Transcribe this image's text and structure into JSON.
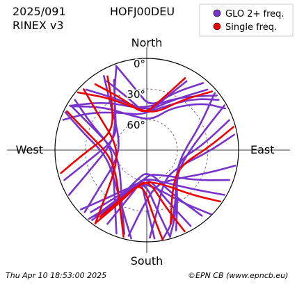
{
  "header": {
    "date_code": "2025/091",
    "rinex": "RINEX v3",
    "station": "HOFJ00DEU"
  },
  "footer": {
    "timestamp": "Thu Apr 10 18:53:00 2025",
    "credit": "©EPN CB (www.epncb.eu)"
  },
  "colors": {
    "glo": "#7733cc",
    "single": "#ee0000",
    "axis": "#000000",
    "grid": "#555555"
  },
  "chart_data": {
    "type": "scatter",
    "projection": "polar sky plot",
    "cardinals": {
      "north": "North",
      "south": "South",
      "east": "East",
      "west": "West"
    },
    "elevation_rings": [
      {
        "elevation": 0,
        "label": "0°"
      },
      {
        "elevation": 30,
        "label": "30°"
      },
      {
        "elevation": 60,
        "label": "60°"
      }
    ],
    "legend": {
      "position": "top-right",
      "entries": [
        "GLO 2+ freq.",
        "Single freq."
      ]
    },
    "series": [
      {
        "name": "GLO 2+ freq.",
        "color": "#7733cc",
        "tracks": [
          [
            [
              -30,
              12
            ],
            [
              -18,
              38
            ],
            [
              0,
              56
            ],
            [
              18,
              38
            ],
            [
              30,
              12
            ]
          ],
          [
            [
              -45,
              6
            ],
            [
              -28,
              34
            ],
            [
              0,
              52
            ],
            [
              28,
              34
            ],
            [
              45,
              6
            ]
          ],
          [
            [
              -60,
              3
            ],
            [
              -40,
              28
            ],
            [
              -5,
              50
            ],
            [
              30,
              30
            ],
            [
              52,
              3
            ]
          ],
          [
            [
              -20,
              2
            ],
            [
              -10,
              30
            ],
            [
              5,
              48
            ],
            [
              25,
              28
            ],
            [
              40,
              4
            ]
          ],
          [
            [
              300,
              4
            ],
            [
              315,
              30
            ],
            [
              340,
              55
            ],
            [
              10,
              60
            ],
            [
              30,
              42
            ],
            [
              50,
              18
            ],
            [
              62,
              3
            ]
          ],
          [
            [
              290,
              3
            ],
            [
              305,
              25
            ],
            [
              330,
              48
            ],
            [
              350,
              55
            ],
            [
              20,
              45
            ],
            [
              42,
              22
            ],
            [
              55,
              4
            ]
          ],
          [
            [
              60,
              2
            ],
            [
              70,
              28
            ],
            [
              95,
              50
            ],
            [
              130,
              52
            ],
            [
              150,
              30
            ],
            [
              160,
              6
            ]
          ],
          [
            [
              50,
              3
            ],
            [
              65,
              32
            ],
            [
              100,
              56
            ],
            [
              135,
              50
            ],
            [
              155,
              22
            ],
            [
              165,
              2
            ]
          ],
          [
            [
              70,
              4
            ],
            [
              85,
              35
            ],
            [
              110,
              58
            ],
            [
              140,
              44
            ],
            [
              160,
              15
            ],
            [
              170,
              1
            ]
          ],
          [
            [
              200,
              3
            ],
            [
              210,
              28
            ],
            [
              240,
              52
            ],
            [
              275,
              55
            ],
            [
              295,
              30
            ],
            [
              305,
              4
            ]
          ],
          [
            [
              195,
              5
            ],
            [
              205,
              32
            ],
            [
              235,
              58
            ],
            [
              270,
              58
            ],
            [
              292,
              34
            ],
            [
              300,
              6
            ]
          ],
          [
            [
              190,
              2
            ],
            [
              200,
              24
            ],
            [
              225,
              46
            ],
            [
              262,
              50
            ],
            [
              285,
              26
            ],
            [
              295,
              2
            ]
          ],
          [
            [
              120,
              2
            ],
            [
              130,
              30
            ],
            [
              160,
              58
            ],
            [
              185,
              62
            ],
            [
              210,
              40
            ],
            [
              222,
              8
            ]
          ],
          [
            [
              135,
              1
            ],
            [
              145,
              26
            ],
            [
              170,
              54
            ],
            [
              195,
              56
            ],
            [
              218,
              32
            ],
            [
              228,
              3
            ]
          ],
          [
            [
              150,
              4
            ],
            [
              158,
              36
            ],
            [
              180,
              65
            ],
            [
              200,
              50
            ],
            [
              215,
              20
            ],
            [
              220,
              2
            ]
          ],
          [
            [
              165,
              2
            ],
            [
              170,
              30
            ],
            [
              185,
              60
            ],
            [
              205,
              44
            ],
            [
              214,
              14
            ]
          ],
          [
            [
              175,
              3
            ],
            [
              180,
              34
            ],
            [
              192,
              62
            ],
            [
              210,
              36
            ],
            [
              218,
              8
            ]
          ],
          [
            [
              140,
              6
            ],
            [
              150,
              40
            ],
            [
              175,
              70
            ],
            [
              200,
              58
            ],
            [
              212,
              26
            ],
            [
              218,
              3
            ]
          ],
          [
            [
              240,
              2
            ],
            [
              250,
              30
            ],
            [
              280,
              55
            ],
            [
              310,
              50
            ],
            [
              330,
              26
            ],
            [
              340,
              3
            ]
          ],
          [
            [
              250,
              4
            ],
            [
              262,
              36
            ],
            [
              292,
              58
            ],
            [
              320,
              42
            ],
            [
              335,
              14
            ]
          ],
          [
            [
              80,
              3
            ],
            [
              92,
              30
            ],
            [
              118,
              55
            ],
            [
              150,
              56
            ],
            [
              170,
              30
            ],
            [
              178,
              4
            ]
          ],
          [
            [
              100,
              2
            ],
            [
              110,
              25
            ],
            [
              135,
              50
            ],
            [
              165,
              55
            ],
            [
              185,
              32
            ],
            [
              192,
              4
            ]
          ],
          [
            [
              225,
              4
            ],
            [
              232,
              32
            ],
            [
              250,
              58
            ],
            [
              290,
              62
            ],
            [
              320,
              36
            ],
            [
              330,
              6
            ]
          ],
          [
            [
              110,
              4
            ],
            [
              122,
              34
            ],
            [
              150,
              62
            ],
            [
              180,
              66
            ],
            [
              200,
              42
            ],
            [
              208,
              8
            ]
          ]
        ]
      },
      {
        "name": "Single freq.",
        "color": "#ee0000",
        "tracks": [
          [
            [
              -38,
              8
            ],
            [
              -24,
              36
            ],
            [
              -5,
              55
            ],
            [
              15,
              40
            ],
            [
              28,
              10
            ]
          ],
          [
            [
              310,
              2
            ],
            [
              325,
              28
            ],
            [
              350,
              50
            ],
            [
              15,
              52
            ],
            [
              35,
              30
            ],
            [
              48,
              4
            ]
          ],
          [
            [
              75,
              2
            ],
            [
              88,
              30
            ],
            [
              115,
              54
            ],
            [
              145,
              46
            ],
            [
              162,
              14
            ]
          ],
          [
            [
              195,
              2
            ],
            [
              205,
              28
            ],
            [
              232,
              52
            ],
            [
              265,
              52
            ],
            [
              288,
              26
            ],
            [
              296,
              3
            ]
          ],
          [
            [
              155,
              2
            ],
            [
              162,
              32
            ],
            [
              178,
              62
            ],
            [
              200,
              48
            ],
            [
              212,
              18
            ]
          ],
          [
            [
              170,
              1
            ],
            [
              175,
              28
            ],
            [
              188,
              58
            ],
            [
              206,
              40
            ],
            [
              215,
              10
            ]
          ],
          [
            [
              255,
              3
            ],
            [
              268,
              30
            ],
            [
              296,
              52
            ],
            [
              322,
              36
            ],
            [
              332,
              8
            ]
          ],
          [
            [
              215,
              2
            ],
            [
              222,
              30
            ],
            [
              242,
              56
            ],
            [
              280,
              60
            ],
            [
              305,
              34
            ],
            [
              314,
              4
            ]
          ],
          [
            [
              125,
              2
            ],
            [
              135,
              28
            ],
            [
              160,
              56
            ],
            [
              190,
              58
            ],
            [
              208,
              30
            ],
            [
              215,
              3
            ]
          ]
        ]
      }
    ]
  }
}
